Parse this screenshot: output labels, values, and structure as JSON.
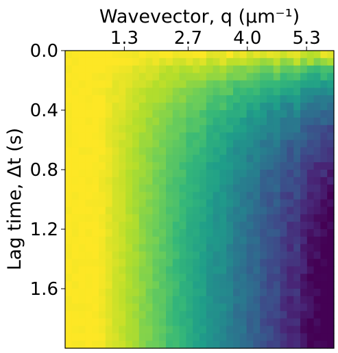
{
  "chart_data": {
    "type": "heatmap",
    "title": "",
    "xlabel": "Wavevector, q (μm⁻¹)",
    "ylabel": "Lag time, Δt (s)",
    "x_axis_position": "top",
    "xlim": [
      0,
      5.9
    ],
    "ylim": [
      2.0,
      0.0
    ],
    "x_ticks": [
      1.3,
      2.7,
      4.0,
      5.3
    ],
    "x_tick_labels": [
      "1.3",
      "2.7",
      "4.0",
      "5.3"
    ],
    "y_ticks": [
      0.0,
      0.4,
      0.8,
      1.2,
      1.6
    ],
    "y_tick_labels": [
      "0.0",
      "0.4",
      "0.8",
      "1.2",
      "1.6"
    ],
    "colormap": "viridis",
    "grid": false,
    "legend": "none",
    "n_x_bins": 40,
    "n_y_bins": 40,
    "value_range": [
      0,
      1
    ],
    "corner_values": {
      "low_q_all_t": 1.0,
      "high_q_short_t": 0.85,
      "high_q_long_t": 0.05
    }
  }
}
